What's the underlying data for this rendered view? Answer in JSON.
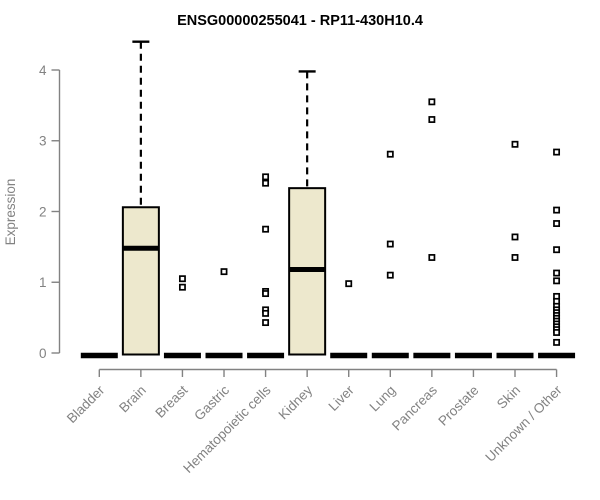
{
  "colors": {
    "background": "#ffffff",
    "axis": "#828282",
    "tick_label": "#828282",
    "title_text": "#000000",
    "box_fill": "#ede8cd",
    "box_stroke": "#000000",
    "median": "#000000",
    "whisker": "#000000",
    "outlier_fill": "#ffffff",
    "outlier_stroke": "#000000"
  },
  "chart_data": {
    "type": "boxplot",
    "title": "ENSG00000255041 - RP11-430H10.4",
    "ylabel": "Expression",
    "xlabel": "",
    "ylim": [
      0,
      4
    ],
    "yticks": [
      0,
      1,
      2,
      3,
      4
    ],
    "grid": "off",
    "legend": "none",
    "categories": [
      "Bladder",
      "Brain",
      "Breast",
      "Gastric",
      "Hematopoietic cells",
      "Kidney",
      "Liver",
      "Lung",
      "Pancreas",
      "Prostate",
      "Skin",
      "Unknown / Other"
    ],
    "boxes": [
      {
        "category": "Bladder",
        "q1": 0,
        "median": 0,
        "q3": 0,
        "whisker_low": 0,
        "whisker_high": 0,
        "outliers": []
      },
      {
        "category": "Brain",
        "q1": 0,
        "median": 1.48,
        "q3": 2.06,
        "whisker_low": 0,
        "whisker_high": 4.4,
        "outliers": []
      },
      {
        "category": "Breast",
        "q1": 0,
        "median": 0,
        "q3": 0,
        "whisker_low": 0,
        "whisker_high": 0,
        "outliers": [
          1.05,
          0.93
        ]
      },
      {
        "category": "Gastric",
        "q1": 0,
        "median": 0,
        "q3": 0,
        "whisker_low": 0,
        "whisker_high": 0,
        "outliers": [
          1.15
        ]
      },
      {
        "category": "Hematopoietic cells",
        "q1": 0,
        "median": 0,
        "q3": 0,
        "whisker_low": 0,
        "whisker_high": 0,
        "outliers": [
          2.49,
          2.4,
          1.75,
          0.87,
          0.84,
          0.61,
          0.56,
          0.43
        ]
      },
      {
        "category": "Kidney",
        "q1": 0,
        "median": 1.18,
        "q3": 2.33,
        "whisker_low": 0,
        "whisker_high": 3.98,
        "outliers": []
      },
      {
        "category": "Liver",
        "q1": 0,
        "median": 0,
        "q3": 0,
        "whisker_low": 0,
        "whisker_high": 0,
        "outliers": [
          0.98
        ]
      },
      {
        "category": "Lung",
        "q1": 0,
        "median": 0,
        "q3": 0,
        "whisker_low": 0,
        "whisker_high": 0,
        "outliers": [
          2.81,
          1.54,
          1.1
        ]
      },
      {
        "category": "Pancreas",
        "q1": 0,
        "median": 0,
        "q3": 0,
        "whisker_low": 0,
        "whisker_high": 0,
        "outliers": [
          3.55,
          3.3,
          1.35
        ]
      },
      {
        "category": "Prostate",
        "q1": 0,
        "median": 0,
        "q3": 0,
        "whisker_low": 0,
        "whisker_high": 0,
        "outliers": []
      },
      {
        "category": "Skin",
        "q1": 0,
        "median": 0,
        "q3": 0,
        "whisker_low": 0,
        "whisker_high": 0,
        "outliers": [
          2.95,
          1.64,
          1.35
        ]
      },
      {
        "category": "Unknown / Other",
        "q1": 0,
        "median": 0,
        "q3": 0,
        "whisker_low": 0,
        "whisker_high": 0,
        "outliers": [
          2.84,
          2.02,
          1.83,
          1.46,
          1.13,
          1.02,
          0.8,
          0.73,
          0.66,
          0.61,
          0.57,
          0.53,
          0.49,
          0.45,
          0.41,
          0.37,
          0.33,
          0.29,
          0.15
        ]
      }
    ]
  }
}
